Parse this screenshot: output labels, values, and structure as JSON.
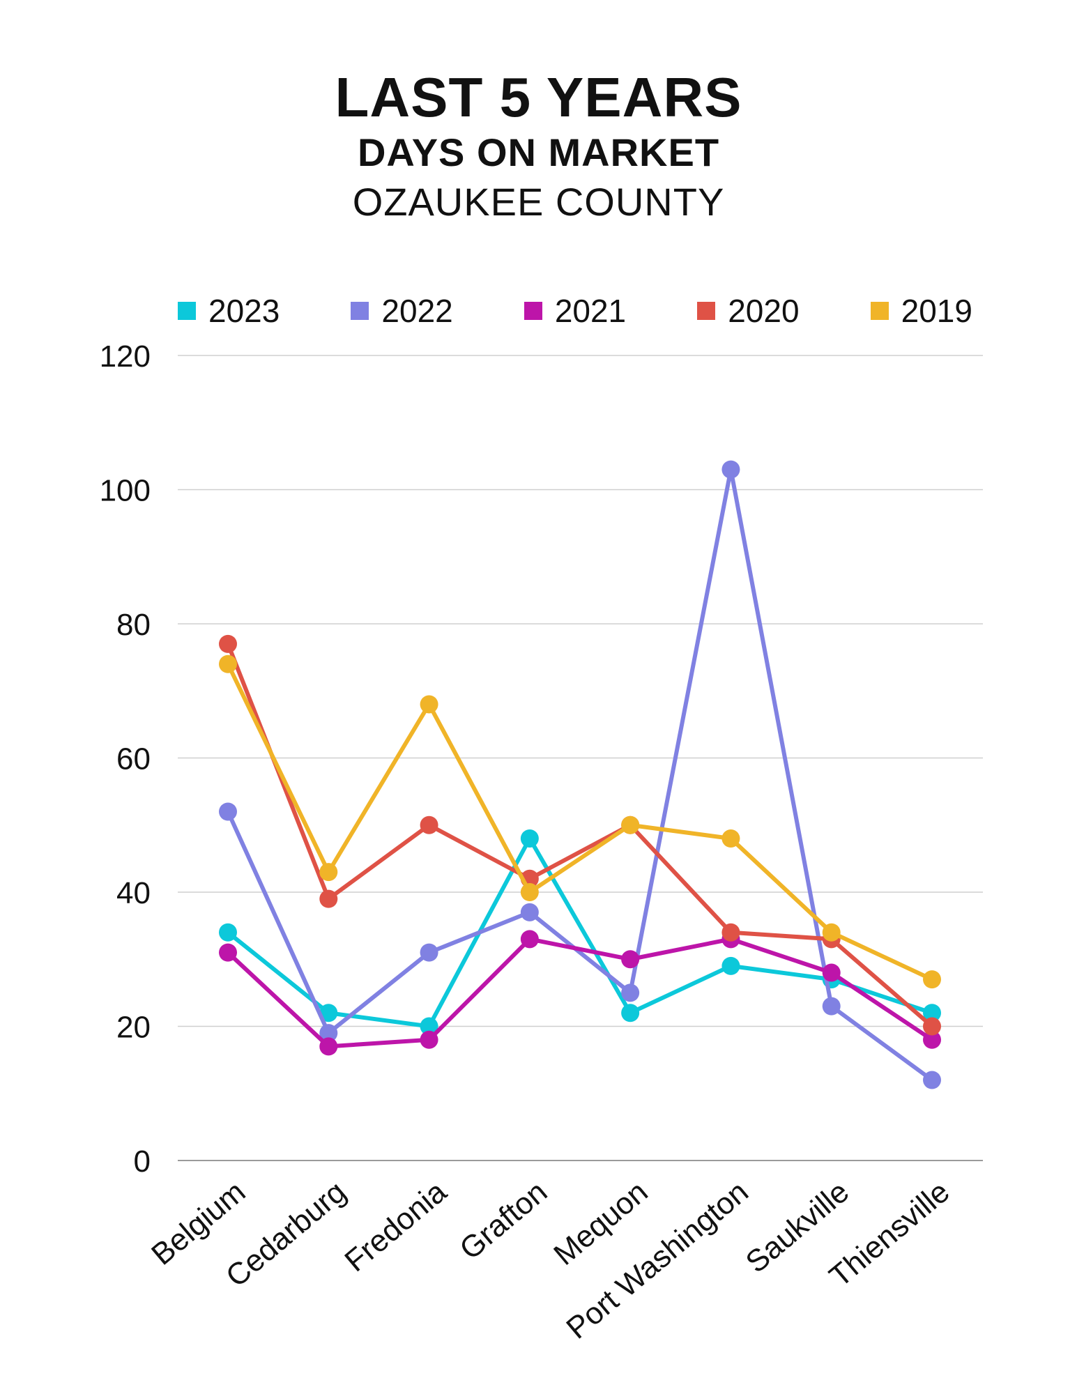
{
  "title": "LAST 5 YEARS",
  "subtitle": "DAYS ON MARKET",
  "region": "OZAUKEE COUNTY",
  "chart_data": {
    "type": "line",
    "categories": [
      "Belgium",
      "Cedarburg",
      "Fredonia",
      "Grafton",
      "Mequon",
      "Port Washington",
      "Saukville",
      "Thiensville"
    ],
    "series": [
      {
        "name": "2023",
        "color": "#0cc8da",
        "values": [
          34,
          22,
          20,
          48,
          22,
          29,
          27,
          22
        ]
      },
      {
        "name": "2022",
        "color": "#8081e2",
        "values": [
          52,
          19,
          31,
          37,
          25,
          103,
          23,
          12
        ]
      },
      {
        "name": "2021",
        "color": "#bd15a9",
        "values": [
          31,
          17,
          18,
          33,
          30,
          33,
          28,
          18
        ]
      },
      {
        "name": "2020",
        "color": "#df5246",
        "values": [
          77,
          39,
          50,
          42,
          50,
          34,
          33,
          20
        ]
      },
      {
        "name": "2019",
        "color": "#f0b428",
        "values": [
          74,
          43,
          68,
          40,
          50,
          48,
          34,
          27
        ]
      }
    ],
    "ylim": [
      0,
      120
    ],
    "yticks": [
      0,
      20,
      40,
      60,
      80,
      100,
      120
    ],
    "grid": true,
    "legend": "top",
    "xlabel": "",
    "ylabel": ""
  }
}
